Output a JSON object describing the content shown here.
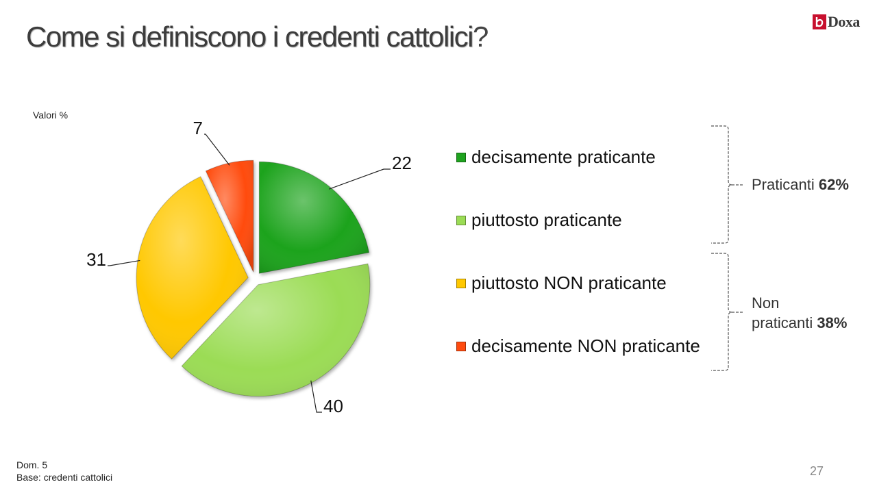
{
  "title": {
    "main": "Come si definiscono i credenti cattolici",
    "question_mark": "?"
  },
  "logo": {
    "text": "Doxa",
    "brand_color": "#c8102e"
  },
  "units_label": "Valori %",
  "chart_data": {
    "type": "pie",
    "categories": [
      "decisamente praticante",
      "piuttosto praticante",
      "piuttosto NON praticante",
      "decisamente NON praticante"
    ],
    "values": [
      22,
      40,
      31,
      7
    ],
    "colors": [
      "#1fa31f",
      "#9bdc55",
      "#ffc800",
      "#ff4b0f"
    ],
    "legend_position": "right",
    "exploded": true
  },
  "groups": [
    {
      "label": "Praticanti",
      "value": "62%"
    },
    {
      "label_line1": "Non",
      "label_line2": "praticanti",
      "value": "38%"
    }
  ],
  "footer": {
    "line1": "Dom. 5",
    "line2": "Base: credenti cattolici"
  },
  "page_number": "27"
}
